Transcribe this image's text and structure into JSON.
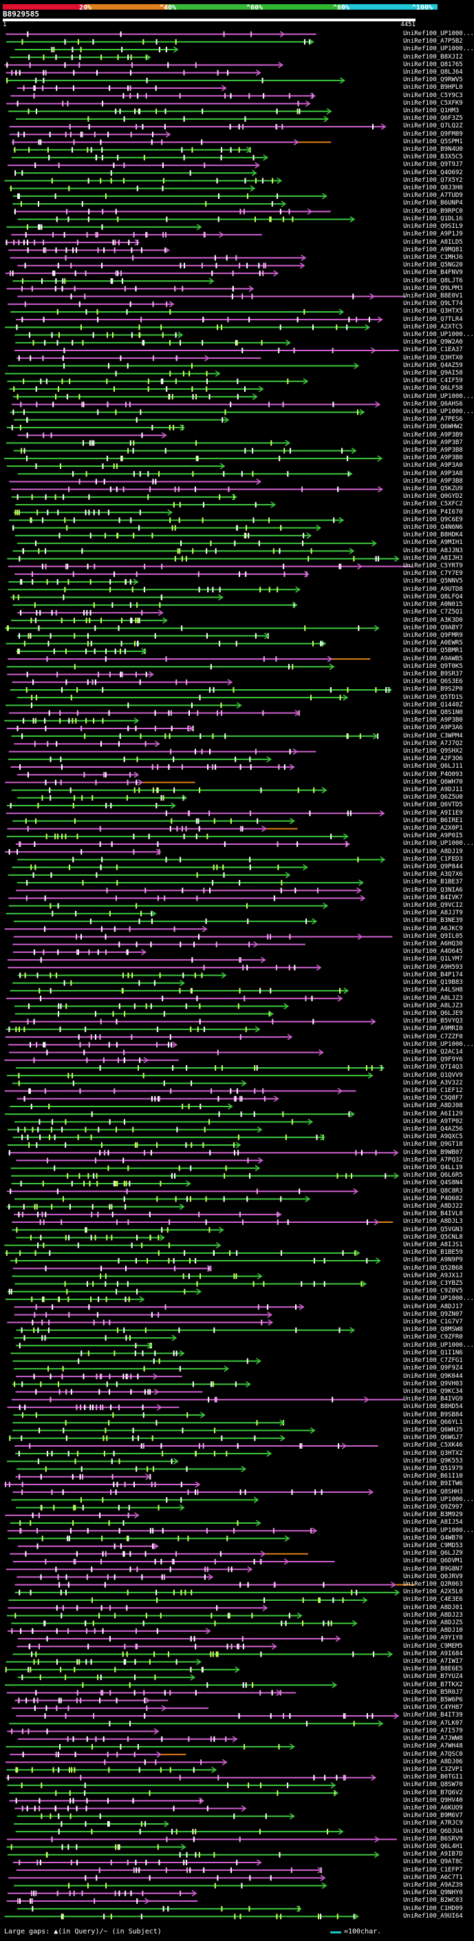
{
  "scale": {
    "ticks": [
      "20%",
      "^40%",
      "^60%",
      "^80%",
      "^100%"
    ],
    "colors": [
      "#e0102f",
      "#e0801a",
      "#38b838",
      "#2fb82f",
      "#20c8d8"
    ]
  },
  "query": {
    "id": "B8929585",
    "start": "1",
    "end": "4451"
  },
  "hits": [
    "UniRef100_UP1000...",
    "UniRef100_A7P5B2",
    "UniRef100_UP1000...",
    "UniRef100_B8XJI2",
    "UniRef100_Q81765",
    "UniRef100_Q8LJ64",
    "UniRef100_Q9RWV5",
    "UniRef100_B9HPL0",
    "UniRef100_C5Y9C3",
    "UniRef100_C5XFK9",
    "UniRef100_Q1HM3",
    "UniRef100_Q6F3Z5",
    "UniRef100_Q7LQ2Z",
    "UniRef100_Q9FM89",
    "UniRef100_Q5SPM1",
    "UniRef100_B9N4U0",
    "UniRef100_B3X5C5",
    "UniRef100_Q9T9J7",
    "UniRef100_Q4O692",
    "UniRef100_Q7X5Y2",
    "UniRef100_Q0J3H0",
    "UniRef100_A7TUD9",
    "UniRef100_B6UNP4",
    "UniRef100_B9RPC0",
    "UniRef100_Q1DL16",
    "UniRef100_Q9SIL9",
    "UniRef100_A9P1J9",
    "UniRef100_A8ILD5",
    "UniRef100_A9MQ81",
    "UniRef100_C1MHJ6",
    "UniRef100_Q5NG20",
    "UniRef100_B4FNV9",
    "UniRef100_Q8LJT6",
    "UniRef100_Q9LPM3",
    "UniRef100_B8E0V1",
    "UniRef100_Q9LT74",
    "UniRef100_Q3HTX5",
    "UniRef100_Q7TLR4",
    "UniRef100_A2XTC5",
    "UniRef100_UP1000...",
    "UniRef100_Q9W2A0",
    "UniRef100_C1EA37",
    "UniRef100_Q3HTX0",
    "UniRef100_Q4AZ59",
    "UniRef100_Q9AI58",
    "UniRef100_C4IF59",
    "UniRef100_Q6LF58",
    "UniRef100_UP1000...",
    "UniRef100_Q6AHS6",
    "UniRef100_UP1000...",
    "UniRef100_A7PES6",
    "UniRef100_Q6WHW2",
    "UniRef100_A9P3B9",
    "UniRef100_A9P3B7",
    "UniRef100_A9P3B8",
    "UniRef100_A9P3B0",
    "UniRef100_A9P3A0",
    "UniRef100_A9P3A8",
    "UniRef100_A9P3B8",
    "UniRef100_Q5KZU9",
    "UniRef100_Q0GYD2",
    "UniRef100_C5XFC2",
    "UniRef100_P4I670",
    "UniRef100_Q9C6E9",
    "UniRef100_Q4N6N6",
    "UniRef100_B8HDK4",
    "UniRef100_A9MIH1",
    "UniRef100_A8JJN3",
    "UniRef100_A8IJH3",
    "UniRef100_C5YRT9",
    "UniRef100_C7Y7E9",
    "UniRef100_Q5NNV5",
    "UniRef100_A9UTD8",
    "UniRef100_Q8LFQ4",
    "UniRef100_A0N015",
    "UniRef100_C7Z5Q1",
    "UniRef100_A3K3D0",
    "UniRef100_Q9ABY7",
    "UniRef100_Q9FMR9",
    "UniRef100_A0EWR5",
    "UniRef100_Q5BMR1",
    "UniRef100_A9AWB5",
    "UniRef100_Q9T0K5",
    "UniRef100_B9SR37",
    "UniRef100_Q6S3E6",
    "UniRef100_B9S2P0",
    "UniRef100_Q5TD1S",
    "UniRef100_Q1440Z",
    "UniRef100_Q8S1N0",
    "UniRef100_A9P3B0",
    "UniRef100_A9P3A6",
    "UniRef100_C3WPM4",
    "UniRef100_A7J7Q2",
    "UniRef100_Q9SHX2",
    "UniRef100_A2F3O6",
    "UniRef100_Q6LJ11",
    "UniRef100_P4O093",
    "UniRef100_Q6WH70",
    "UniRef100_A9DJ11",
    "UniRef100_Q6Z5U0",
    "UniRef100_Q6VTD5",
    "UniRef100_A9I1E9",
    "UniRef100_B6IRE1",
    "UniRef100_A2X0P1",
    "UniRef100_A9P0I5",
    "UniRef100_UP1000...",
    "UniRef100_A8DJ19",
    "UniRef100_C1FED3",
    "UniRef100_Q9P844",
    "UniRef100_A3Q7X6",
    "UniRef100_B1BE37",
    "UniRef100_Q3NIA6",
    "UniRef100_B4IVK7",
    "UniRef100_Q9VCI2",
    "UniRef100_A8JJT9",
    "UniRef100_B3NE39",
    "UniRef100_A6JKC9",
    "UniRef100_Q9IL05",
    "UniRef100_A6HQ30",
    "UniRef100_A4O645",
    "UniRef100_Q1LYM7",
    "UniRef100_A9H593",
    "UniRef100_B4P174",
    "UniRef100_Q19B83",
    "UniRef100_A4LSH8",
    "UniRef100_A8LJZ3",
    "UniRef100_A8LJZ3",
    "UniRef100_Q6LJE9",
    "UniRef100_B5VYQ3",
    "UniRef100_A9MRI0",
    "UniRef100_C7ZZF0",
    "UniRef100_UP1000...",
    "UniRef100_Q2AC14",
    "UniRef100_Q9F9Y6",
    "UniRef100_Q7I4Q3",
    "UniRef100_Q1QVV9",
    "UniRef100_A3V322",
    "UniRef100_C1EF12",
    "UniRef100_C5Q8F7",
    "UniRef100_A8DJ08",
    "UniRef100_A6I129",
    "UniRef100_A9TP02",
    "UniRef100_Q4AZ56",
    "UniRef100_A9QXC5",
    "UniRef100_Q9GT18",
    "UniRef100_B9WB07",
    "UniRef100_A7PQ32",
    "UniRef100_Q4LL19",
    "UniRef100_Q6L6R5",
    "UniRef100_Q4S8N4",
    "UniRef100_Q8C8R3",
    "UniRef100_P4O602",
    "UniRef100_A8DJ22",
    "UniRef100_B4IVL8",
    "UniRef100_A8DJL3",
    "UniRef100_Q5VGN3",
    "UniRef100_Q5CNL8",
    "UniRef100_A8IJS1",
    "UniRef100_B1BE59",
    "UniRef100_A9N9P9",
    "UniRef100_Q52B68",
    "UniRef100_A9JX1J",
    "UniRef100_C3YBZ5",
    "UniRef100_C9Z0V5",
    "UniRef100_UP1000...",
    "UniRef100_A8DJ17",
    "UniRef100_Q9ZN07",
    "UniRef100_C1G7V7",
    "UniRef100_Q8MSW8",
    "UniRef100_C9ZFR0",
    "UniRef100_UP1000...",
    "UniRef100_Q1I1N6",
    "UniRef100_C7ZFG1",
    "UniRef100_Q9F9Z4",
    "UniRef100_Q9K044",
    "UniRef100_Q9VH03",
    "UniRef100_Q9KC34",
    "UniRef100_B4IVG9",
    "UniRef100_B8HD54",
    "UniRef100_B9SB84",
    "UniRef100_Q66YL1",
    "UniRef100_Q6WHJ5",
    "UniRef100_Q6WGJ7",
    "UniRef100_C5XK46",
    "UniRef100_Q3HTX2",
    "UniRef100_Q9K553",
    "UniRef100_Q51979",
    "UniRef100_B61I10",
    "UniRef100_B9ITW6",
    "UniRef100_Q8SHH3",
    "UniRef100_UP1000...",
    "UniRef100_Q9Z997",
    "UniRef100_B3M929",
    "UniRef100_A8IJ54",
    "UniRef100_UP1000...",
    "UniRef100_Q4WB70",
    "UniRef100_C9MD53",
    "UniRef100_Q6LJZ9",
    "UniRef100_Q6DVM1",
    "UniRef100_B9G8N7",
    "UniRef100_Q0JRV9",
    "UniRef100_Q2R063",
    "UniRef100_A2X5L0",
    "UniRef100_C4E3E6",
    "UniRef100_A8DJ01",
    "UniRef100_A8DJ23",
    "UniRef100_A8DJZ5",
    "UniRef100_A8DJ10",
    "UniRef100_A9Y1Y8",
    "UniRef100_C9MEM5",
    "UniRef100_A9I684",
    "UniRef100_A7IWI7",
    "UniRef100_B8E6E5",
    "UniRef100_B7YUZ4",
    "UniRef100_B7TKX2",
    "UniRef100_B5R0J7",
    "UniRef100_B5W6P6",
    "UniRef100_C4YH87",
    "UniRef100_B4IT39",
    "UniRef100_A7LK07",
    "UniRef100_A7I579",
    "UniRef100_A7JWW8",
    "UniRef100_A7WH48",
    "UniRef100_A7QSC0",
    "UniRef100_A8DJ06",
    "UniRef100_C3ZVP1",
    "UniRef100_B0TGI1",
    "UniRef100_Q8SW70",
    "UniRef100_B7Q6V2",
    "UniRef100_Q9HV40",
    "UniRef100_A6KUO9",
    "UniRef100_B9M6V7",
    "UniRef100_A7RJC9",
    "UniRef100_Q6DJU4",
    "UniRef100_B6SRV9",
    "UniRef100_Q6L4H1",
    "UniRef100_A9IB7D",
    "UniRef100_Q9AT8C",
    "UniRef100_C1EFP7",
    "UniRef100_A6C7T1",
    "UniRef100_A9AZ39",
    "UniRef100_Q9NHY0",
    "UniRef100_B2WC03",
    "UniRef100_C1HD09",
    "UniRef100_A9UI64"
  ],
  "footer": {
    "gaps_label": "Large gaps: ▲(in Query)/~ (in Subject)",
    "scale_label": "=100char."
  }
}
